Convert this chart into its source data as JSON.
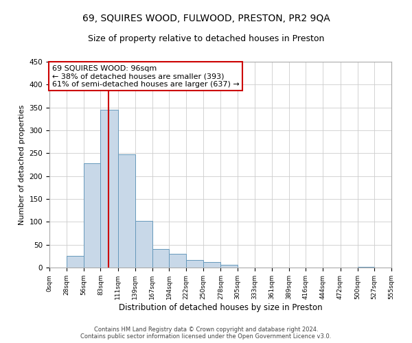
{
  "title": "69, SQUIRES WOOD, FULWOOD, PRESTON, PR2 9QA",
  "subtitle": "Size of property relative to detached houses in Preston",
  "xlabel": "Distribution of detached houses by size in Preston",
  "ylabel": "Number of detached properties",
  "bin_edges": [
    0,
    28,
    56,
    83,
    111,
    139,
    167,
    194,
    222,
    250,
    278,
    305,
    333,
    361,
    389,
    416,
    444,
    472,
    500,
    527,
    555
  ],
  "bar_heights": [
    0,
    25,
    228,
    345,
    248,
    102,
    40,
    30,
    16,
    12,
    6,
    0,
    0,
    0,
    0,
    0,
    0,
    0,
    1,
    0
  ],
  "bar_color": "#c8d8e8",
  "bar_edgecolor": "#6699bb",
  "ylim": [
    0,
    450
  ],
  "yticks": [
    0,
    50,
    100,
    150,
    200,
    250,
    300,
    350,
    400,
    450
  ],
  "property_size": 96,
  "vline_color": "#cc0000",
  "annotation_line1": "69 SQUIRES WOOD: 96sqm",
  "annotation_line2": "← 38% of detached houses are smaller (393)",
  "annotation_line3": "61% of semi-detached houses are larger (637) →",
  "annotation_box_edgecolor": "#cc0000",
  "footer_line1": "Contains HM Land Registry data © Crown copyright and database right 2024.",
  "footer_line2": "Contains public sector information licensed under the Open Government Licence v3.0.",
  "tick_labels": [
    "0sqm",
    "28sqm",
    "56sqm",
    "83sqm",
    "111sqm",
    "139sqm",
    "167sqm",
    "194sqm",
    "222sqm",
    "250sqm",
    "278sqm",
    "305sqm",
    "333sqm",
    "361sqm",
    "389sqm",
    "416sqm",
    "444sqm",
    "472sqm",
    "500sqm",
    "527sqm",
    "555sqm"
  ],
  "background_color": "#ffffff",
  "grid_color": "#cccccc",
  "title_fontsize": 10,
  "subtitle_fontsize": 9,
  "ylabel_fontsize": 8,
  "xlabel_fontsize": 8.5,
  "tick_fontsize": 6.5,
  "annotation_fontsize": 8,
  "footer_fontsize": 6
}
